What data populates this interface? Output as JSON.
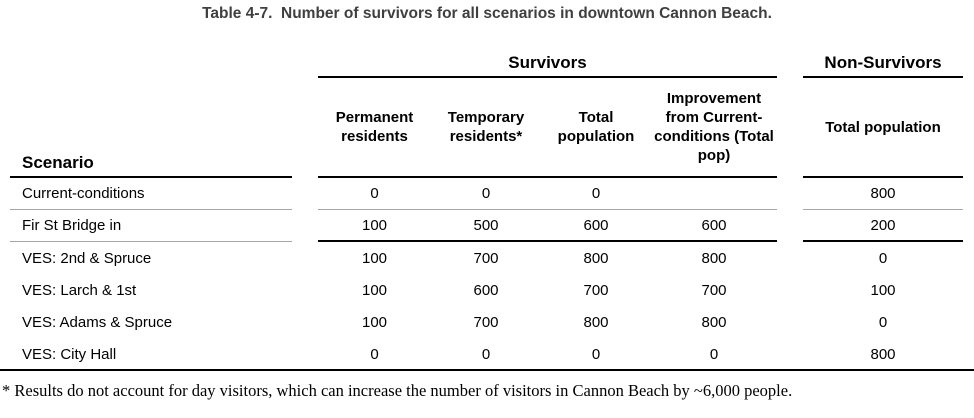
{
  "title": "Table 4-7.  Number of survivors for all scenarios in downtown Cannon Beach.",
  "table": {
    "group_headers": {
      "survivors": "Survivors",
      "non_survivors": "Non-Survivors"
    },
    "columns": {
      "scenario": "Scenario",
      "permanent": "Permanent residents",
      "temporary": "Temporary residents*",
      "total": "Total population",
      "improvement": "Improvement from Current-conditions (Total pop)",
      "non_survivors_total": "Total population"
    },
    "rows": [
      {
        "scenario": "Current-conditions",
        "values": [
          "0",
          "0",
          "0",
          "",
          "800"
        ]
      },
      {
        "scenario": "Fir St Bridge in",
        "values": [
          "100",
          "500",
          "600",
          "600",
          "200"
        ]
      },
      {
        "scenario": "VES: 2nd & Spruce",
        "values": [
          "100",
          "700",
          "800",
          "800",
          "0"
        ]
      },
      {
        "scenario": "VES: Larch & 1st",
        "values": [
          "100",
          "600",
          "700",
          "700",
          "100"
        ]
      },
      {
        "scenario": "VES: Adams & Spruce",
        "values": [
          "100",
          "700",
          "800",
          "800",
          "0"
        ]
      },
      {
        "scenario": "VES: City Hall",
        "values": [
          "0",
          "0",
          "0",
          "0",
          "800"
        ]
      }
    ]
  },
  "footnote": "* Results do not account for day visitors, which can increase the number of visitors in Cannon Beach by ~6,000 people.",
  "colors": {
    "title_text": "#3f3f3f",
    "body_text": "#000000",
    "rule_dark": "#000000",
    "rule_light": "#a6a6a6",
    "background": "#ffffff"
  }
}
